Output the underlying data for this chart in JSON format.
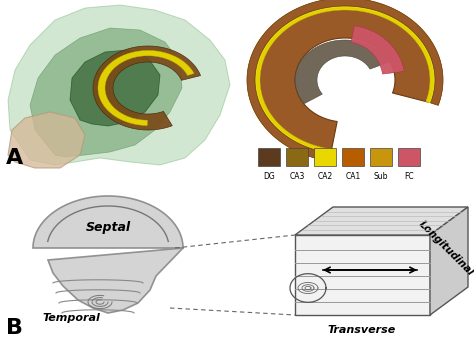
{
  "legend_colors": [
    "#5C3A1E",
    "#8B6914",
    "#E8D800",
    "#B85C00",
    "#C8960C",
    "#CC5566"
  ],
  "legend_labels": [
    "DG",
    "CA3",
    "CA2",
    "CA1",
    "Sub",
    "FC"
  ],
  "label_A": "A",
  "label_B": "B",
  "septal_label": "Septal",
  "temporal_label": "Temporal",
  "transverse_label": "Transverse",
  "longitudinal_label": "Longitudinal",
  "bg_color": "#ffffff"
}
